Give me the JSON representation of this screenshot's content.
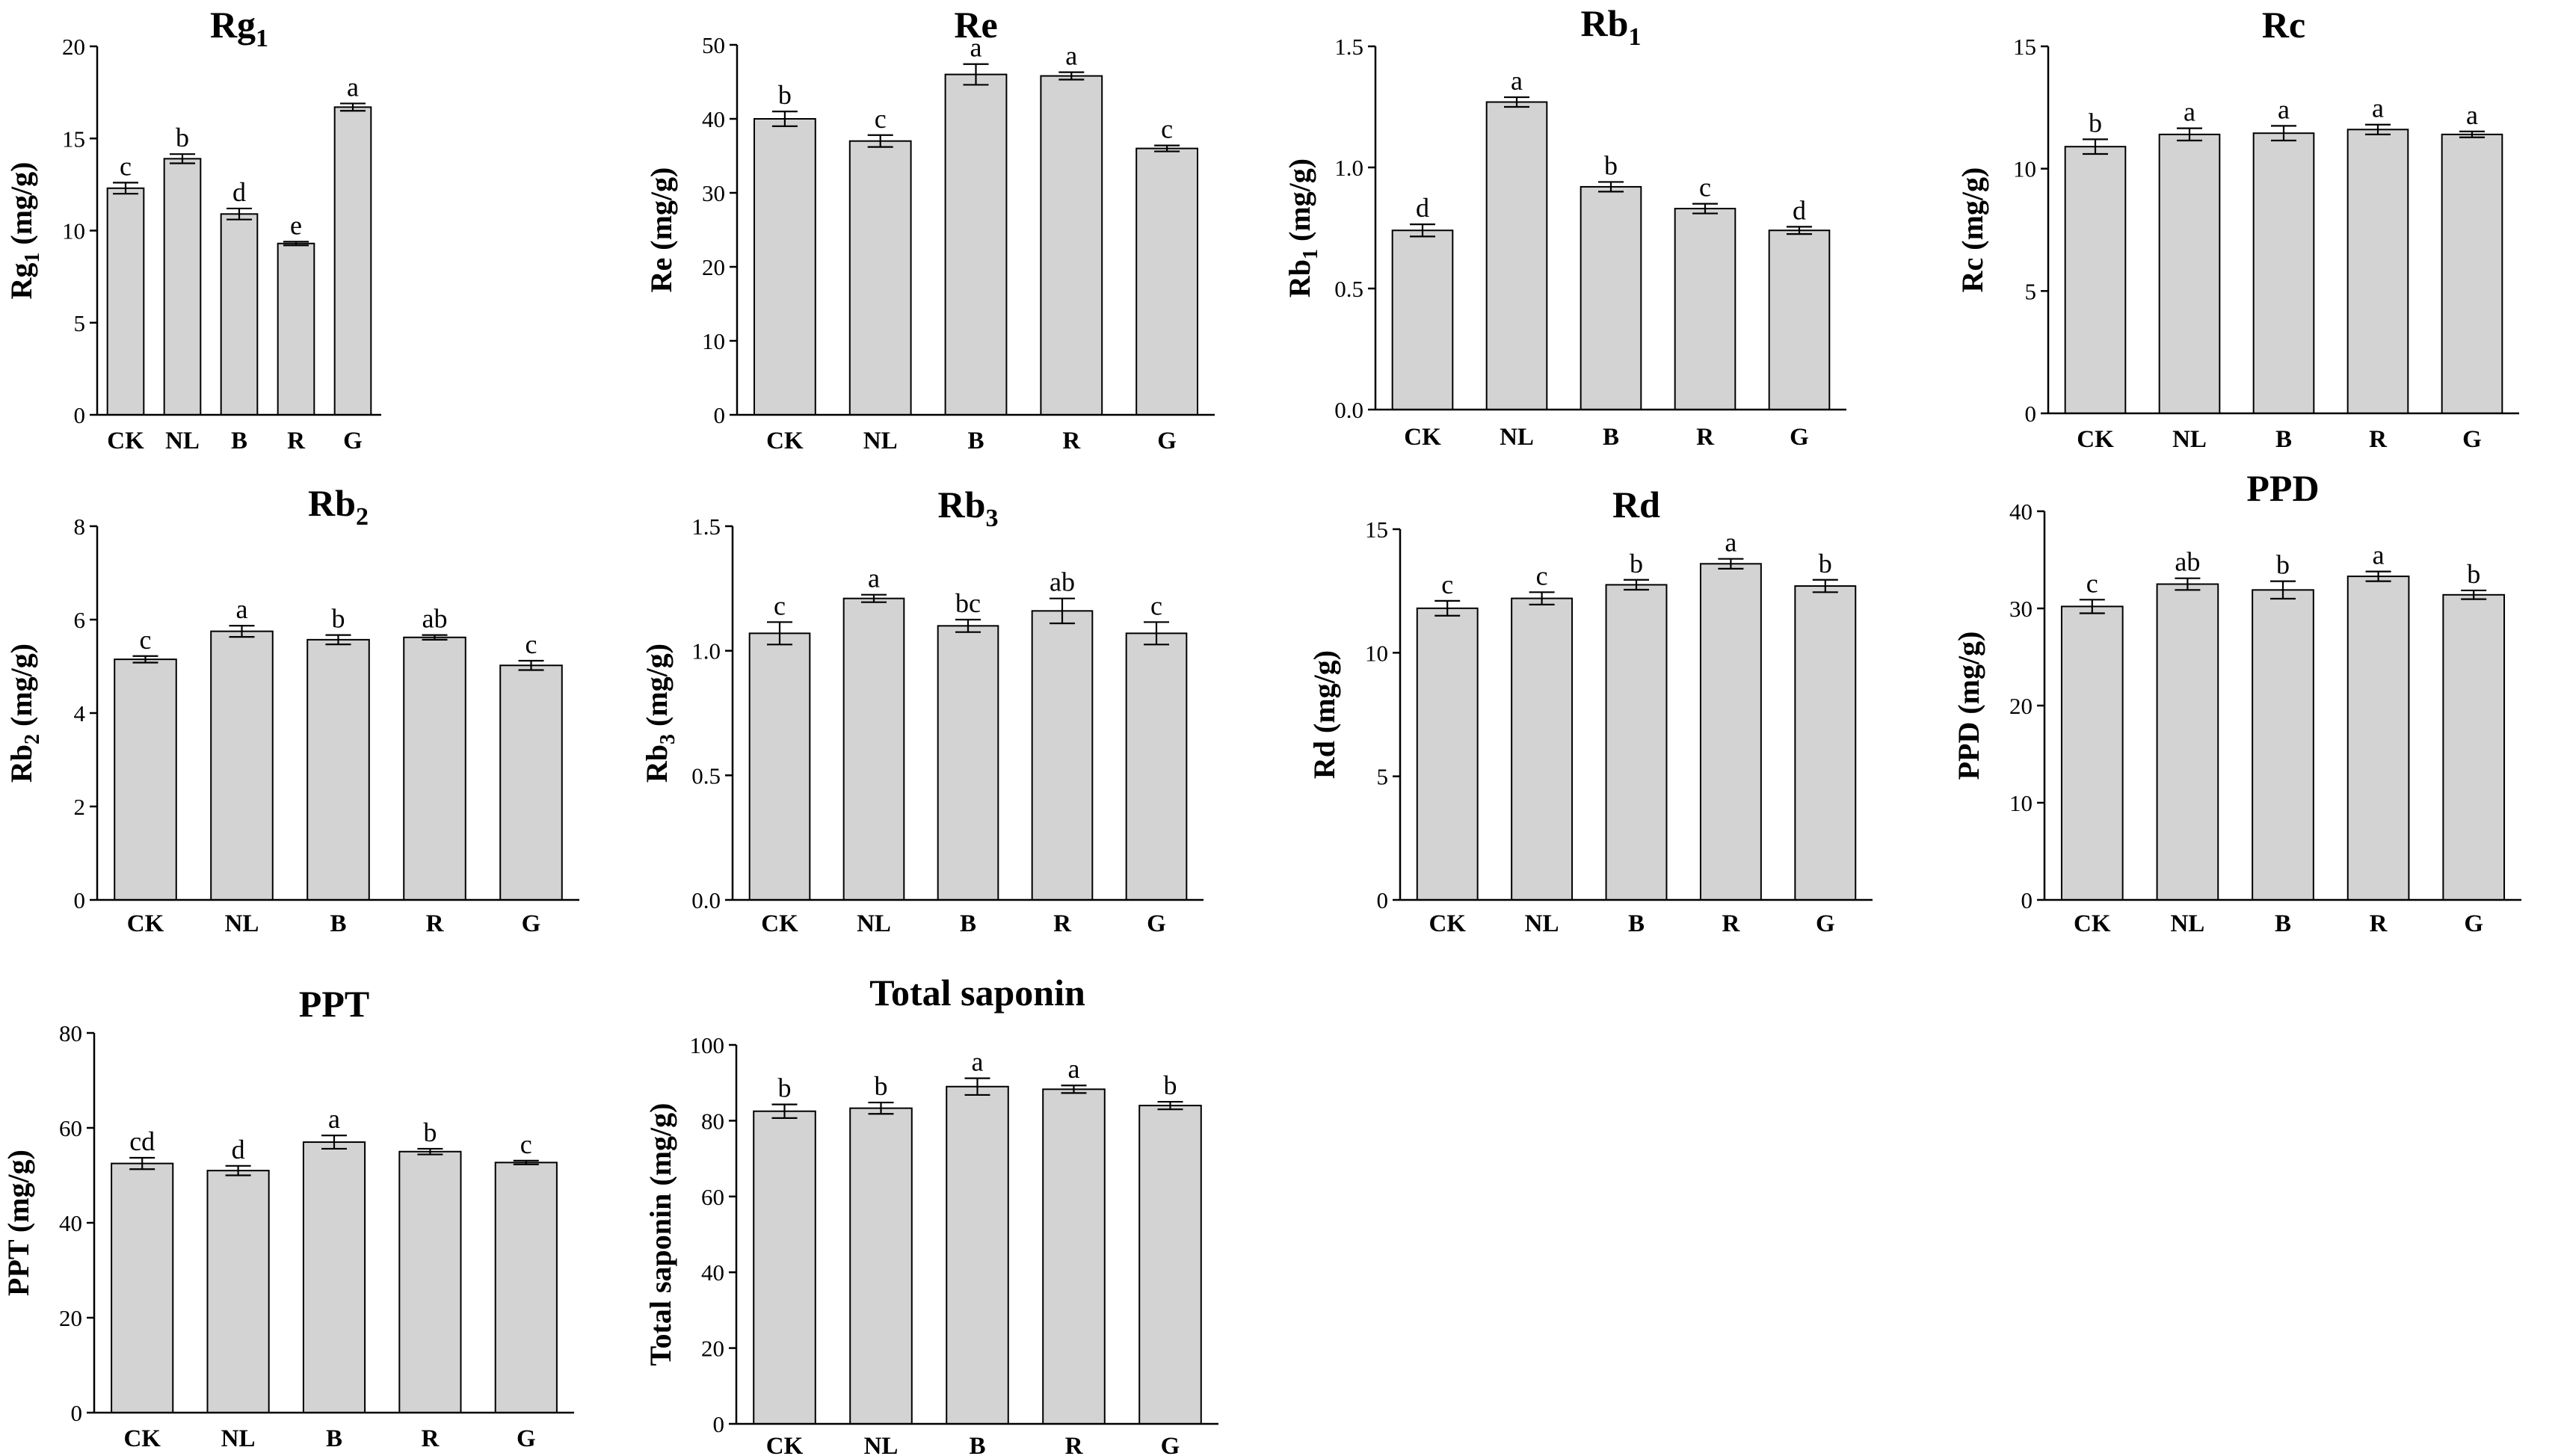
{
  "chart_data": [
    {
      "type": "bar",
      "title": "Rg",
      "title_sub": "1",
      "ylabel": "Rg",
      "ylabel_sub": "1",
      "ylabel_suffix": " (mg/g)",
      "categories": [
        "CK",
        "NL",
        "B",
        "R",
        "G"
      ],
      "values": [
        12.3,
        13.9,
        10.9,
        9.3,
        16.7
      ],
      "errors": [
        0.3,
        0.25,
        0.3,
        0.1,
        0.2
      ],
      "letters": [
        "c",
        "b",
        "d",
        "e",
        "a"
      ],
      "ylim": [
        0,
        20
      ],
      "yticks": [
        0,
        5,
        10,
        15,
        20
      ],
      "ytick_labels": [
        "0",
        "5",
        "10",
        "15",
        "20"
      ]
    },
    {
      "type": "bar",
      "title": "Re",
      "title_sub": "",
      "ylabel": "Re",
      "ylabel_sub": "",
      "ylabel_suffix": " (mg/g)",
      "categories": [
        "CK",
        "NL",
        "B",
        "R",
        "G"
      ],
      "values": [
        40,
        37,
        46,
        45.8,
        36
      ],
      "errors": [
        1.0,
        0.8,
        1.4,
        0.5,
        0.4
      ],
      "letters": [
        "b",
        "c",
        "a",
        "a",
        "c"
      ],
      "ylim": [
        0,
        50
      ],
      "yticks": [
        0,
        10,
        20,
        30,
        40,
        50
      ],
      "ytick_labels": [
        "0",
        "10",
        "20",
        "30",
        "40",
        "50"
      ]
    },
    {
      "type": "bar",
      "title": "Rb",
      "title_sub": "1",
      "ylabel": "Rb",
      "ylabel_sub": "1",
      "ylabel_suffix": " (mg/g)",
      "categories": [
        "CK",
        "NL",
        "B",
        "R",
        "G"
      ],
      "values": [
        0.74,
        1.27,
        0.92,
        0.83,
        0.74
      ],
      "errors": [
        0.025,
        0.02,
        0.02,
        0.02,
        0.015
      ],
      "letters": [
        "d",
        "a",
        "b",
        "c",
        "d"
      ],
      "ylim": [
        0,
        1.5
      ],
      "yticks": [
        0,
        0.5,
        1.0,
        1.5
      ],
      "ytick_labels": [
        "0.0",
        "0.5",
        "1.0",
        "1.5"
      ]
    },
    {
      "type": "bar",
      "title": "Rc",
      "title_sub": "",
      "ylabel": "Rc",
      "ylabel_sub": "",
      "ylabel_suffix": " (mg/g)",
      "categories": [
        "CK",
        "NL",
        "B",
        "R",
        "G"
      ],
      "values": [
        10.9,
        11.4,
        11.45,
        11.6,
        11.4
      ],
      "errors": [
        0.3,
        0.25,
        0.3,
        0.2,
        0.12
      ],
      "letters": [
        "b",
        "a",
        "a",
        "a",
        "a"
      ],
      "ylim": [
        0,
        15
      ],
      "yticks": [
        0,
        5,
        10,
        15
      ],
      "ytick_labels": [
        "0",
        "5",
        "10",
        "15"
      ]
    },
    {
      "type": "bar",
      "title": "Rb",
      "title_sub": "2",
      "ylabel": "Rb",
      "ylabel_sub": "2",
      "ylabel_suffix": " (mg/g)",
      "categories": [
        "CK",
        "NL",
        "B",
        "R",
        "G"
      ],
      "values": [
        5.15,
        5.75,
        5.57,
        5.62,
        5.02
      ],
      "errors": [
        0.07,
        0.12,
        0.1,
        0.05,
        0.1
      ],
      "letters": [
        "c",
        "a",
        "b",
        "ab",
        "c"
      ],
      "ylim": [
        0,
        8
      ],
      "yticks": [
        0,
        2,
        4,
        6,
        8
      ],
      "ytick_labels": [
        "0",
        "2",
        "4",
        "6",
        "8"
      ]
    },
    {
      "type": "bar",
      "title": "Rb",
      "title_sub": "3",
      "ylabel": "Rb",
      "ylabel_sub": "3",
      "ylabel_suffix": " (mg/g)",
      "categories": [
        "CK",
        "NL",
        "B",
        "R",
        "G"
      ],
      "values": [
        1.07,
        1.21,
        1.1,
        1.16,
        1.07
      ],
      "errors": [
        0.045,
        0.015,
        0.025,
        0.05,
        0.045
      ],
      "letters": [
        "c",
        "a",
        "bc",
        "ab",
        "c"
      ],
      "ylim": [
        0,
        1.5
      ],
      "yticks": [
        0,
        0.5,
        1.0,
        1.5
      ],
      "ytick_labels": [
        "0.0",
        "0.5",
        "1.0",
        "1.5"
      ]
    },
    {
      "type": "bar",
      "title": "Rd",
      "title_sub": "",
      "ylabel": "Rd",
      "ylabel_sub": "",
      "ylabel_suffix": " (mg/g)",
      "categories": [
        "CK",
        "NL",
        "B",
        "R",
        "G"
      ],
      "values": [
        11.8,
        12.2,
        12.75,
        13.6,
        12.7
      ],
      "errors": [
        0.3,
        0.25,
        0.2,
        0.2,
        0.25
      ],
      "letters": [
        "c",
        "c",
        "b",
        "a",
        "b"
      ],
      "ylim": [
        0,
        15
      ],
      "yticks": [
        0,
        5,
        10,
        15
      ],
      "ytick_labels": [
        "0",
        "5",
        "10",
        "15"
      ]
    },
    {
      "type": "bar",
      "title": "PPD",
      "title_sub": "",
      "ylabel": "PPD",
      "ylabel_sub": "",
      "ylabel_suffix": " (mg/g)",
      "categories": [
        "CK",
        "NL",
        "B",
        "R",
        "G"
      ],
      "values": [
        30.2,
        32.5,
        31.9,
        33.3,
        31.4
      ],
      "errors": [
        0.7,
        0.6,
        0.9,
        0.5,
        0.45
      ],
      "letters": [
        "c",
        "ab",
        "b",
        "a",
        "b"
      ],
      "ylim": [
        0,
        40
      ],
      "yticks": [
        0,
        10,
        20,
        30,
        40
      ],
      "ytick_labels": [
        "0",
        "10",
        "20",
        "30",
        "40"
      ]
    },
    {
      "type": "bar",
      "title": "PPT",
      "title_sub": "",
      "ylabel": "PPT",
      "ylabel_sub": "",
      "ylabel_suffix": " (mg/g)",
      "categories": [
        "CK",
        "NL",
        "B",
        "R",
        "G"
      ],
      "values": [
        52.5,
        51,
        57,
        55,
        52.7
      ],
      "errors": [
        1.2,
        1.0,
        1.4,
        0.6,
        0.4
      ],
      "letters": [
        "cd",
        "d",
        "a",
        "b",
        "c"
      ],
      "ylim": [
        0,
        80
      ],
      "yticks": [
        0,
        20,
        40,
        60,
        80
      ],
      "ytick_labels": [
        "0",
        "20",
        "40",
        "60",
        "80"
      ]
    },
    {
      "type": "bar",
      "title": "Total saponin",
      "title_sub": "",
      "ylabel": "Total saponin",
      "ylabel_sub": "",
      "ylabel_suffix": " (mg/g)",
      "categories": [
        "CK",
        "NL",
        "B",
        "R",
        "G"
      ],
      "values": [
        82.5,
        83.3,
        89,
        88.3,
        84
      ],
      "errors": [
        1.8,
        1.5,
        2.2,
        1.0,
        1.0
      ],
      "letters": [
        "b",
        "b",
        "a",
        "a",
        "b"
      ],
      "ylim": [
        0,
        100
      ],
      "yticks": [
        0,
        20,
        40,
        60,
        80,
        100
      ],
      "ytick_labels": [
        "0",
        "20",
        "40",
        "60",
        "80",
        "100"
      ]
    }
  ],
  "colors": {
    "bar_fill": "#d3d3d3",
    "bar_stroke": "#000000",
    "axis": "#000000"
  }
}
